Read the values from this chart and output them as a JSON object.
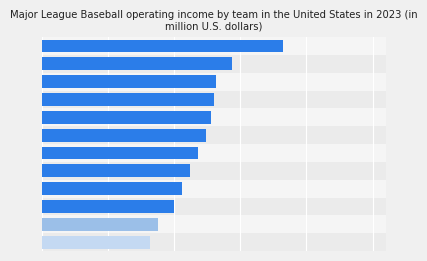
{
  "title": "Major League Baseball operating income by team in the United States in 2023 (in\nmillion U.S. dollars)",
  "values": [
    91,
    72,
    66,
    65,
    64,
    62,
    59,
    56,
    53,
    50,
    44,
    41
  ],
  "bar_colors": [
    "#2b7de9",
    "#2b7de9",
    "#2b7de9",
    "#2b7de9",
    "#2b7de9",
    "#2b7de9",
    "#2b7de9",
    "#2b7de9",
    "#2b7de9",
    "#2b7de9",
    "#9bbfe8",
    "#c4d9f2"
  ],
  "xlim": [
    0,
    130
  ],
  "background_color": "#f0f0f0",
  "title_fontsize": 7.2,
  "bar_height": 0.72,
  "grid_color": "#ffffff",
  "band_color_even": "#ebebeb",
  "band_color_odd": "#f5f5f5"
}
